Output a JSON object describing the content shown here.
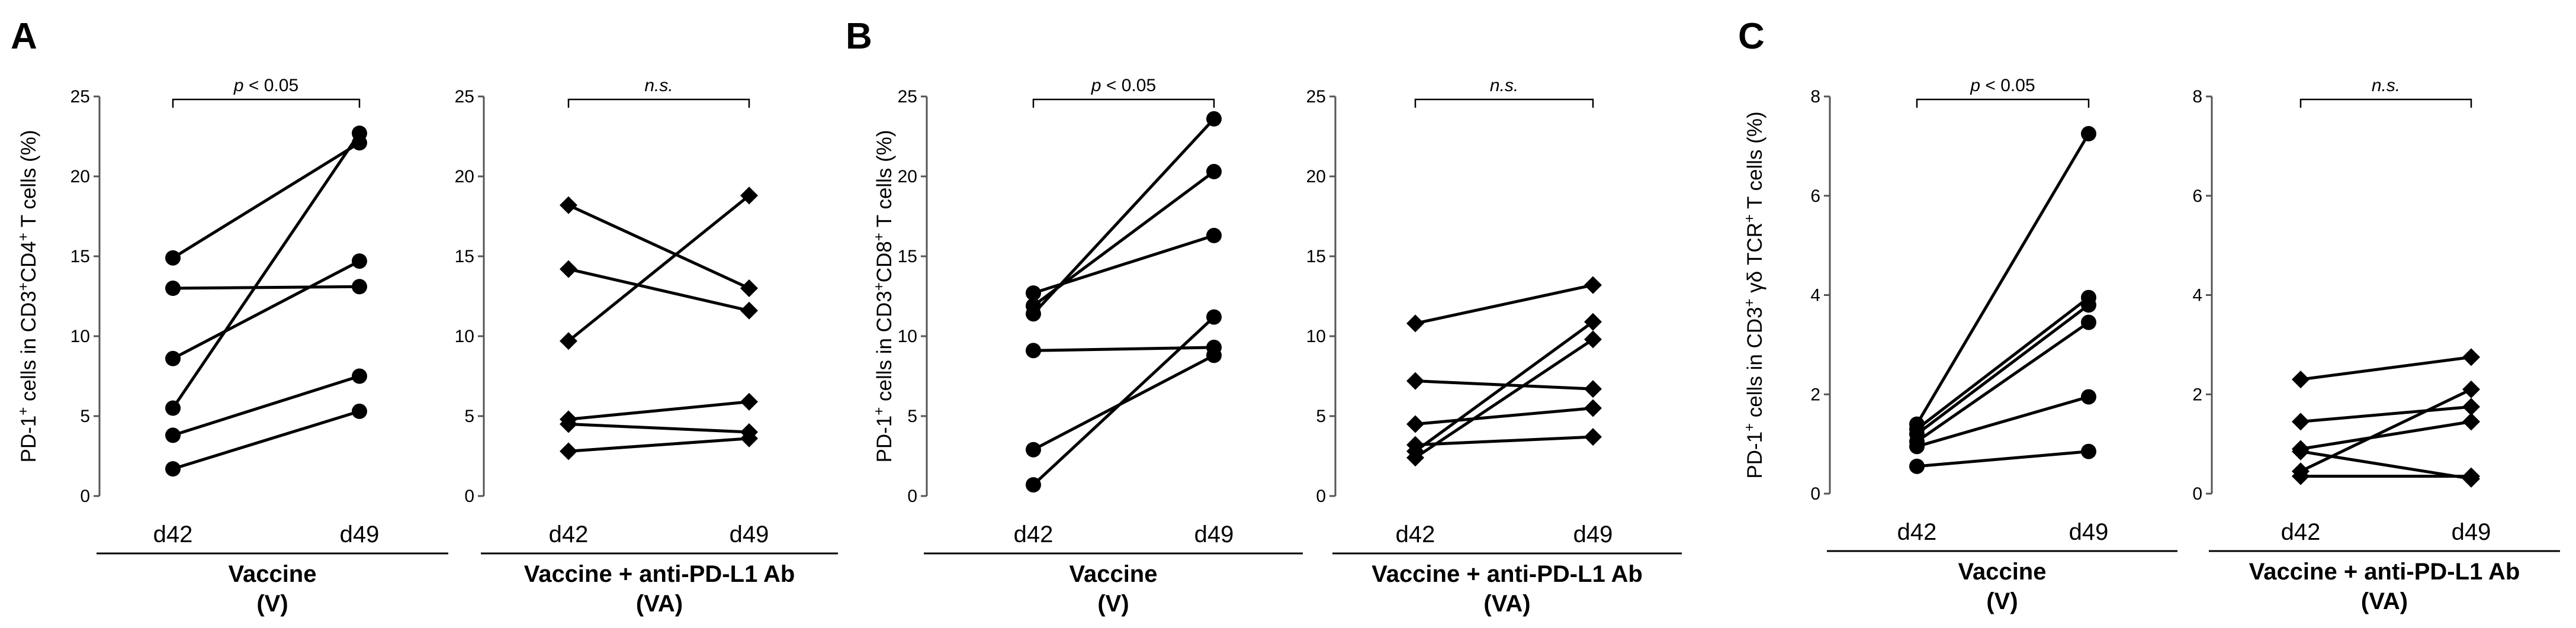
{
  "panel_letters": [
    "A",
    "B",
    "C"
  ],
  "chart_data": [
    {
      "type": "line",
      "panel": "A",
      "ylabel_parts": [
        {
          "t": "PD-1"
        },
        {
          "t": "+",
          "sup": true
        },
        {
          "t": " cells in CD3"
        },
        {
          "t": "+",
          "sup": true
        },
        {
          "t": "CD4"
        },
        {
          "t": "+",
          "sup": true
        },
        {
          "t": " T cells (%)"
        }
      ],
      "ylim": [
        0,
        25
      ],
      "yticks": [
        0,
        5,
        10,
        15,
        20,
        25
      ],
      "categories": [
        "d42",
        "d49"
      ],
      "marker": "circle",
      "group_label": "Vaccine",
      "group_sublabel": "(V)",
      "significance": "p < 0.05",
      "series": [
        {
          "name": "s1",
          "values": [
            14.9,
            22.1
          ]
        },
        {
          "name": "s2",
          "values": [
            13.0,
            13.1
          ]
        },
        {
          "name": "s3",
          "values": [
            8.6,
            14.7
          ]
        },
        {
          "name": "s4",
          "values": [
            5.5,
            22.7
          ]
        },
        {
          "name": "s5",
          "values": [
            3.8,
            7.5
          ]
        },
        {
          "name": "s6",
          "values": [
            1.7,
            5.3
          ]
        }
      ]
    },
    {
      "type": "line",
      "panel": "A",
      "ylabel_parts": [],
      "ylim": [
        0,
        25
      ],
      "yticks": [
        0,
        5,
        10,
        15,
        20,
        25
      ],
      "categories": [
        "d42",
        "d49"
      ],
      "marker": "diamond-x",
      "group_label": "Vaccine + anti-PD-L1 Ab",
      "group_sublabel": "(VA)",
      "significance": "n.s.",
      "series": [
        {
          "name": "s1",
          "values": [
            18.2,
            13.0
          ]
        },
        {
          "name": "s2",
          "values": [
            14.2,
            11.6
          ]
        },
        {
          "name": "s3",
          "values": [
            9.7,
            18.8
          ]
        },
        {
          "name": "s4",
          "values": [
            4.8,
            5.9
          ]
        },
        {
          "name": "s5",
          "values": [
            4.5,
            4.0
          ]
        },
        {
          "name": "s6",
          "values": [
            2.8,
            3.6
          ]
        }
      ]
    },
    {
      "type": "line",
      "panel": "B",
      "ylabel_parts": [
        {
          "t": "PD-1"
        },
        {
          "t": "+",
          "sup": true
        },
        {
          "t": " cells in CD3"
        },
        {
          "t": "+",
          "sup": true
        },
        {
          "t": "CD8"
        },
        {
          "t": "+",
          "sup": true
        },
        {
          "t": " T cells (%)"
        }
      ],
      "ylim": [
        0,
        25
      ],
      "yticks": [
        0,
        5,
        10,
        15,
        20,
        25
      ],
      "categories": [
        "d42",
        "d49"
      ],
      "marker": "circle",
      "group_label": "Vaccine",
      "group_sublabel": "(V)",
      "significance": "p < 0.05",
      "series": [
        {
          "name": "s1",
          "values": [
            12.7,
            16.3
          ]
        },
        {
          "name": "s2",
          "values": [
            11.9,
            20.3
          ]
        },
        {
          "name": "s3",
          "values": [
            11.4,
            23.6
          ]
        },
        {
          "name": "s4",
          "values": [
            9.1,
            9.3
          ]
        },
        {
          "name": "s5",
          "values": [
            2.9,
            8.8
          ]
        },
        {
          "name": "s6",
          "values": [
            0.7,
            11.2
          ]
        }
      ]
    },
    {
      "type": "line",
      "panel": "B",
      "ylabel_parts": [],
      "ylim": [
        0,
        25
      ],
      "yticks": [
        0,
        5,
        10,
        15,
        20,
        25
      ],
      "categories": [
        "d42",
        "d49"
      ],
      "marker": "diamond",
      "group_label": "Vaccine + anti-PD-L1 Ab",
      "group_sublabel": "(VA)",
      "significance": "n.s.",
      "series": [
        {
          "name": "s1",
          "values": [
            10.8,
            13.2
          ]
        },
        {
          "name": "s2",
          "values": [
            7.2,
            6.7
          ]
        },
        {
          "name": "s3",
          "values": [
            4.5,
            5.5
          ]
        },
        {
          "name": "s4",
          "values": [
            3.2,
            3.7
          ]
        },
        {
          "name": "s5",
          "values": [
            2.8,
            10.9
          ]
        },
        {
          "name": "s6",
          "values": [
            2.4,
            9.8
          ]
        }
      ]
    },
    {
      "type": "line",
      "panel": "C",
      "ylabel_parts": [
        {
          "t": "PD-1"
        },
        {
          "t": "+",
          "sup": true
        },
        {
          "t": " cells in CD3"
        },
        {
          "t": "+",
          "sup": true
        },
        {
          "t": " γδ TCR"
        },
        {
          "t": "+",
          "sup": true
        },
        {
          "t": " T cells (%)"
        }
      ],
      "ylim": [
        0,
        8
      ],
      "yticks": [
        0,
        2,
        4,
        6,
        8
      ],
      "categories": [
        "d42",
        "d49"
      ],
      "marker": "circle",
      "group_label": "Vaccine",
      "group_sublabel": "(V)",
      "significance": "p < 0.05",
      "series": [
        {
          "name": "s1",
          "values": [
            1.4,
            7.25
          ]
        },
        {
          "name": "s2",
          "values": [
            1.3,
            3.95
          ]
        },
        {
          "name": "s3",
          "values": [
            1.2,
            3.8
          ]
        },
        {
          "name": "s4",
          "values": [
            1.05,
            3.45
          ]
        },
        {
          "name": "s5",
          "values": [
            0.95,
            1.95
          ]
        },
        {
          "name": "s6",
          "values": [
            0.55,
            0.85
          ]
        }
      ]
    },
    {
      "type": "line",
      "panel": "C",
      "ylabel_parts": [],
      "ylim": [
        0,
        8
      ],
      "yticks": [
        0,
        2,
        4,
        6,
        8
      ],
      "categories": [
        "d42",
        "d49"
      ],
      "marker": "diamond",
      "group_label": "Vaccine + anti-PD-L1 Ab",
      "group_sublabel": "(VA)",
      "significance": "n.s.",
      "series": [
        {
          "name": "s1",
          "values": [
            2.3,
            2.75
          ]
        },
        {
          "name": "s2",
          "values": [
            1.45,
            1.75
          ]
        },
        {
          "name": "s3",
          "values": [
            0.9,
            1.45
          ]
        },
        {
          "name": "s4",
          "values": [
            0.85,
            0.3
          ]
        },
        {
          "name": "s5",
          "values": [
            0.45,
            2.1
          ]
        },
        {
          "name": "s6",
          "values": [
            0.35,
            0.35
          ]
        }
      ]
    }
  ]
}
